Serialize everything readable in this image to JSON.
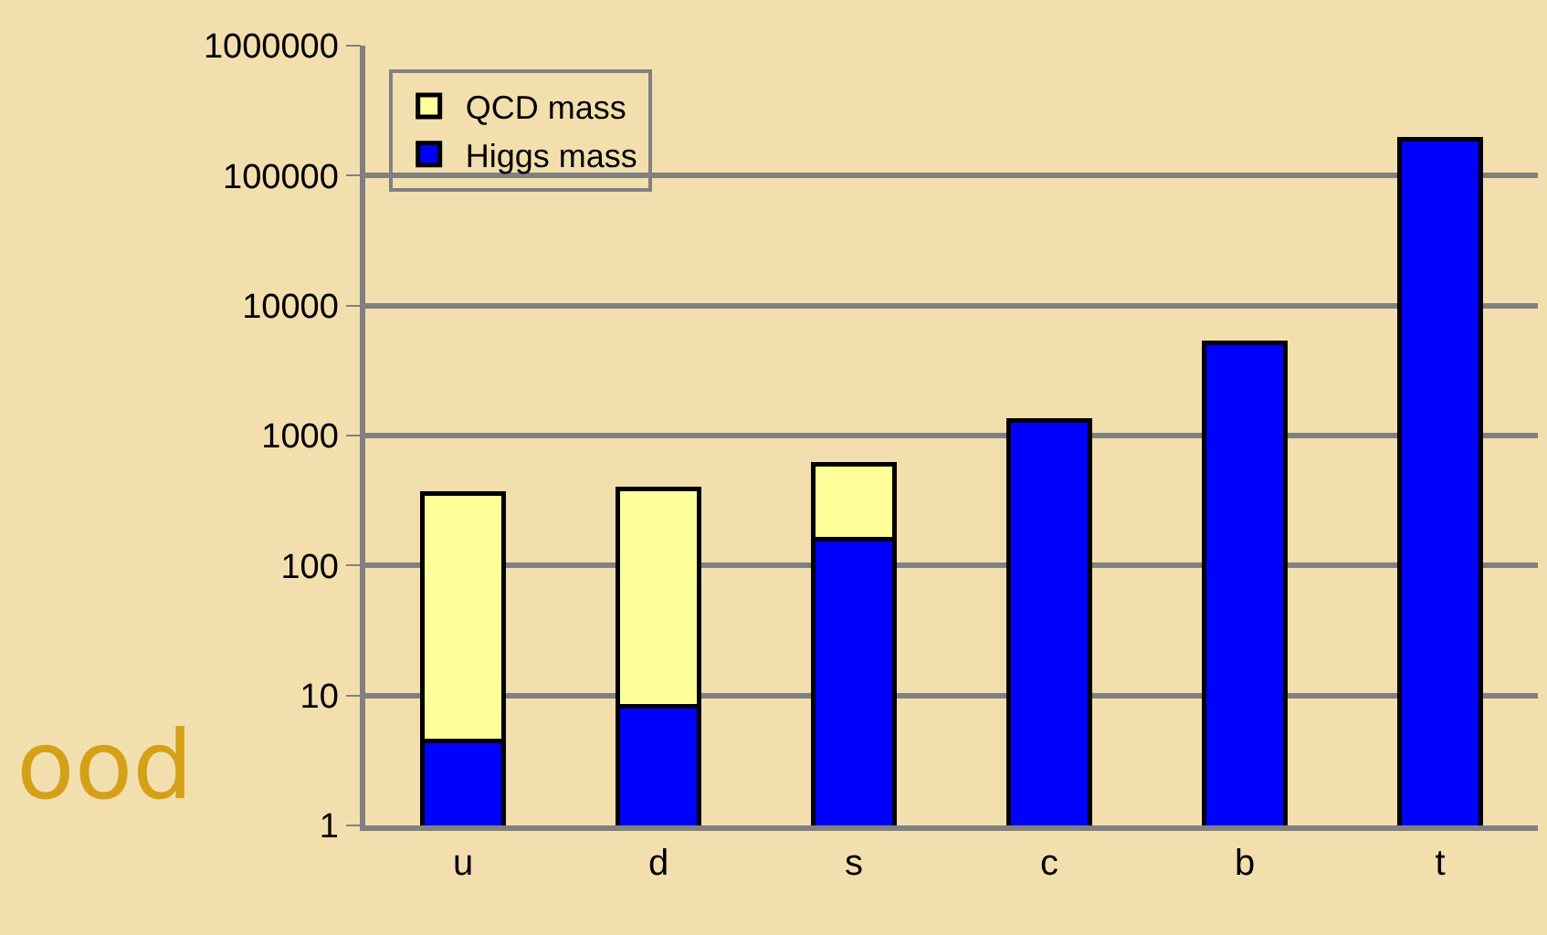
{
  "chart_data": {
    "type": "bar",
    "stacked": true,
    "log": true,
    "categories": [
      "u",
      "d",
      "s",
      "c",
      "b",
      "t"
    ],
    "series": [
      {
        "name": "Higgs mass",
        "color": "#0000ff",
        "values": [
          4.5,
          8.3,
          160,
          1300,
          5200,
          190000
        ]
      },
      {
        "name": "QCD mass",
        "color": "#ffff99",
        "values": [
          355,
          382,
          440,
          null,
          null,
          null
        ]
      }
    ],
    "ylim": [
      1,
      1000000
    ],
    "yticks": [
      1,
      10,
      100,
      1000,
      10000,
      100000,
      1000000
    ],
    "grid": "y",
    "legend": "top left",
    "annotations": [
      "ood"
    ]
  }
}
